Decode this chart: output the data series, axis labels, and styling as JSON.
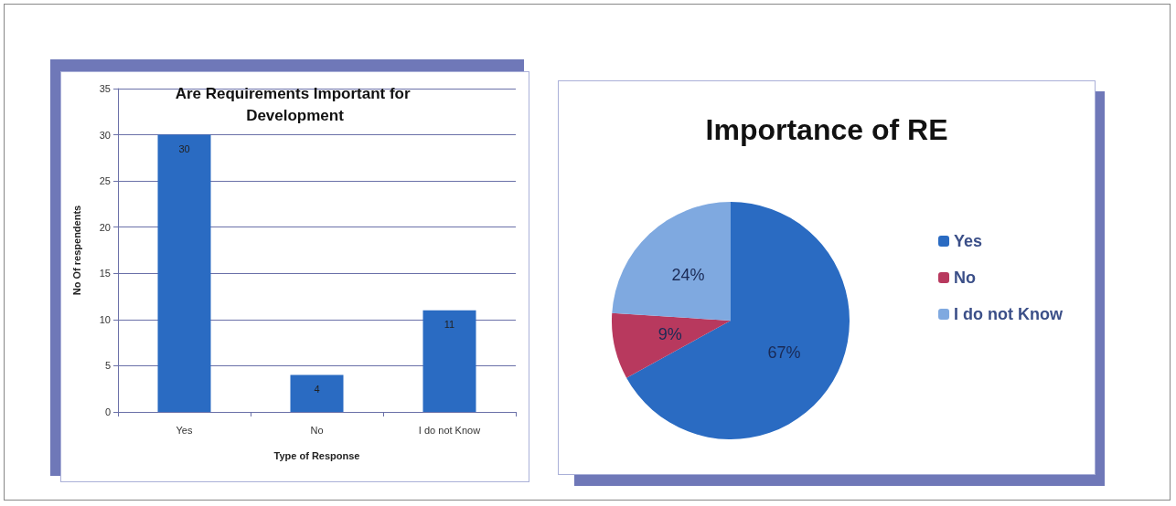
{
  "chart_data": [
    {
      "type": "bar",
      "title": "Are Requirements Important for Development",
      "xlabel": "Type of Response",
      "ylabel": "No Of respendents",
      "categories": [
        "Yes",
        "No",
        "I do not Know"
      ],
      "values": [
        30,
        4,
        11
      ],
      "color": "#2a6bc2",
      "ylim": [
        0,
        35
      ],
      "yticks": [
        0,
        5,
        10,
        15,
        20,
        25,
        30,
        35
      ],
      "grid": "y",
      "data_labels": true,
      "legend": false
    },
    {
      "type": "pie",
      "title": "Importance of RE",
      "categories": [
        "Yes",
        "No",
        "I do not Know"
      ],
      "values": [
        67,
        9,
        24
      ],
      "colors": [
        "#2a6bc2",
        "#b8395e",
        "#7fa9e0"
      ],
      "value_labels": [
        "67%",
        "9%",
        "24%"
      ],
      "legend": "right"
    }
  ]
}
